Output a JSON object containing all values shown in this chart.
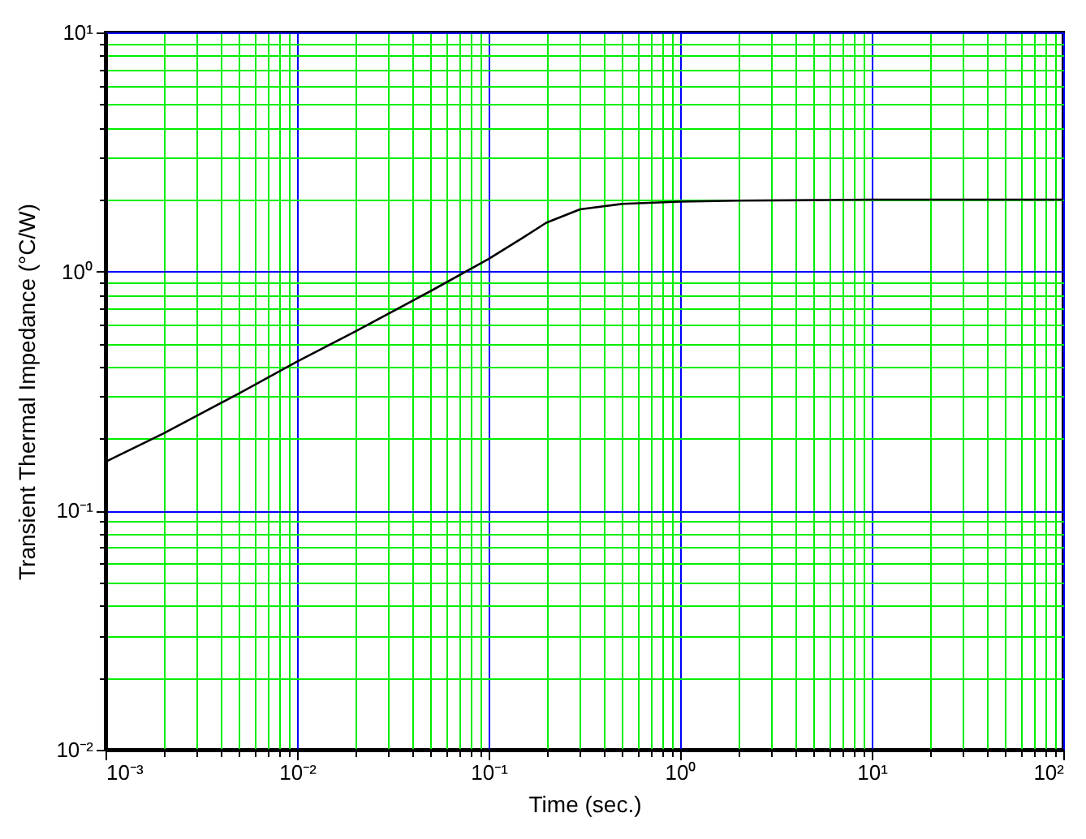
{
  "chart_data": {
    "type": "line",
    "xlabel": "Time        (sec.)",
    "ylabel": "Transient Thermal Impedance      (°C/W)",
    "x": [
      0.001,
      0.002,
      0.005,
      0.01,
      0.02,
      0.05,
      0.1,
      0.15,
      0.2,
      0.3,
      0.5,
      1,
      2,
      5,
      10,
      100
    ],
    "series": [
      {
        "color": "#000000",
        "values": [
          0.16,
          0.21,
          0.31,
          0.42,
          0.56,
          0.83,
          1.13,
          1.38,
          1.6,
          1.82,
          1.92,
          1.96,
          1.98,
          1.99,
          2.0,
          2.0
        ]
      }
    ],
    "log": "xy",
    "grid": true,
    "legend": false,
    "marker": "none",
    "line_style": "solid",
    "xlim": [
      0.001,
      100
    ],
    "ylim": [
      0.01,
      10
    ],
    "xticks": [
      {
        "value": 0.001,
        "label": "10⁻³"
      },
      {
        "value": 0.002,
        "label": null
      },
      {
        "value": 0.003,
        "label": null
      },
      {
        "value": 0.004,
        "label": null
      },
      {
        "value": 0.005,
        "label": null
      },
      {
        "value": 0.006,
        "label": null
      },
      {
        "value": 0.007,
        "label": null
      },
      {
        "value": 0.008,
        "label": null
      },
      {
        "value": 0.009,
        "label": null
      },
      {
        "value": 0.01,
        "label": "10⁻²"
      },
      {
        "value": 0.02,
        "label": null
      },
      {
        "value": 0.03,
        "label": null
      },
      {
        "value": 0.04,
        "label": null
      },
      {
        "value": 0.05,
        "label": null
      },
      {
        "value": 0.06,
        "label": null
      },
      {
        "value": 0.07,
        "label": null
      },
      {
        "value": 0.08,
        "label": null
      },
      {
        "value": 0.09,
        "label": null
      },
      {
        "value": 0.1,
        "label": "10⁻¹"
      },
      {
        "value": 0.2,
        "label": null
      },
      {
        "value": 0.3,
        "label": null
      },
      {
        "value": 0.4,
        "label": null
      },
      {
        "value": 0.5,
        "label": null
      },
      {
        "value": 0.6,
        "label": null
      },
      {
        "value": 0.7,
        "label": null
      },
      {
        "value": 0.8,
        "label": null
      },
      {
        "value": 0.9,
        "label": null
      },
      {
        "value": 1,
        "label": "10⁰"
      },
      {
        "value": 2,
        "label": null
      },
      {
        "value": 3,
        "label": null
      },
      {
        "value": 4,
        "label": null
      },
      {
        "value": 5,
        "label": null
      },
      {
        "value": 6,
        "label": null
      },
      {
        "value": 7,
        "label": null
      },
      {
        "value": 8,
        "label": null
      },
      {
        "value": 9,
        "label": null
      },
      {
        "value": 10,
        "label": "10¹"
      },
      {
        "value": 20,
        "label": null
      },
      {
        "value": 30,
        "label": null
      },
      {
        "value": 40,
        "label": null
      },
      {
        "value": 50,
        "label": null
      },
      {
        "value": 60,
        "label": null
      },
      {
        "value": 70,
        "label": null
      },
      {
        "value": 80,
        "label": null
      },
      {
        "value": 90,
        "label": null
      },
      {
        "value": 100,
        "label": "10²"
      }
    ],
    "yticks": [
      {
        "value": 0.01,
        "label": "10⁻²"
      },
      {
        "value": 0.02,
        "label": null
      },
      {
        "value": 0.03,
        "label": null
      },
      {
        "value": 0.04,
        "label": null
      },
      {
        "value": 0.05,
        "label": null
      },
      {
        "value": 0.06,
        "label": null
      },
      {
        "value": 0.07,
        "label": null
      },
      {
        "value": 0.08,
        "label": null
      },
      {
        "value": 0.09,
        "label": null
      },
      {
        "value": 0.1,
        "label": "10⁻¹"
      },
      {
        "value": 0.2,
        "label": null
      },
      {
        "value": 0.3,
        "label": null
      },
      {
        "value": 0.4,
        "label": null
      },
      {
        "value": 0.5,
        "label": null
      },
      {
        "value": 0.6,
        "label": null
      },
      {
        "value": 0.7,
        "label": null
      },
      {
        "value": 0.8,
        "label": null
      },
      {
        "value": 0.9,
        "label": null
      },
      {
        "value": 1,
        "label": "10⁰"
      },
      {
        "value": 2,
        "label": null
      },
      {
        "value": 3,
        "label": null
      },
      {
        "value": 4,
        "label": null
      },
      {
        "value": 5,
        "label": null
      },
      {
        "value": 6,
        "label": null
      },
      {
        "value": 7,
        "label": null
      },
      {
        "value": 8,
        "label": null
      },
      {
        "value": 9,
        "label": null
      },
      {
        "value": 10,
        "label": "10¹"
      }
    ]
  }
}
